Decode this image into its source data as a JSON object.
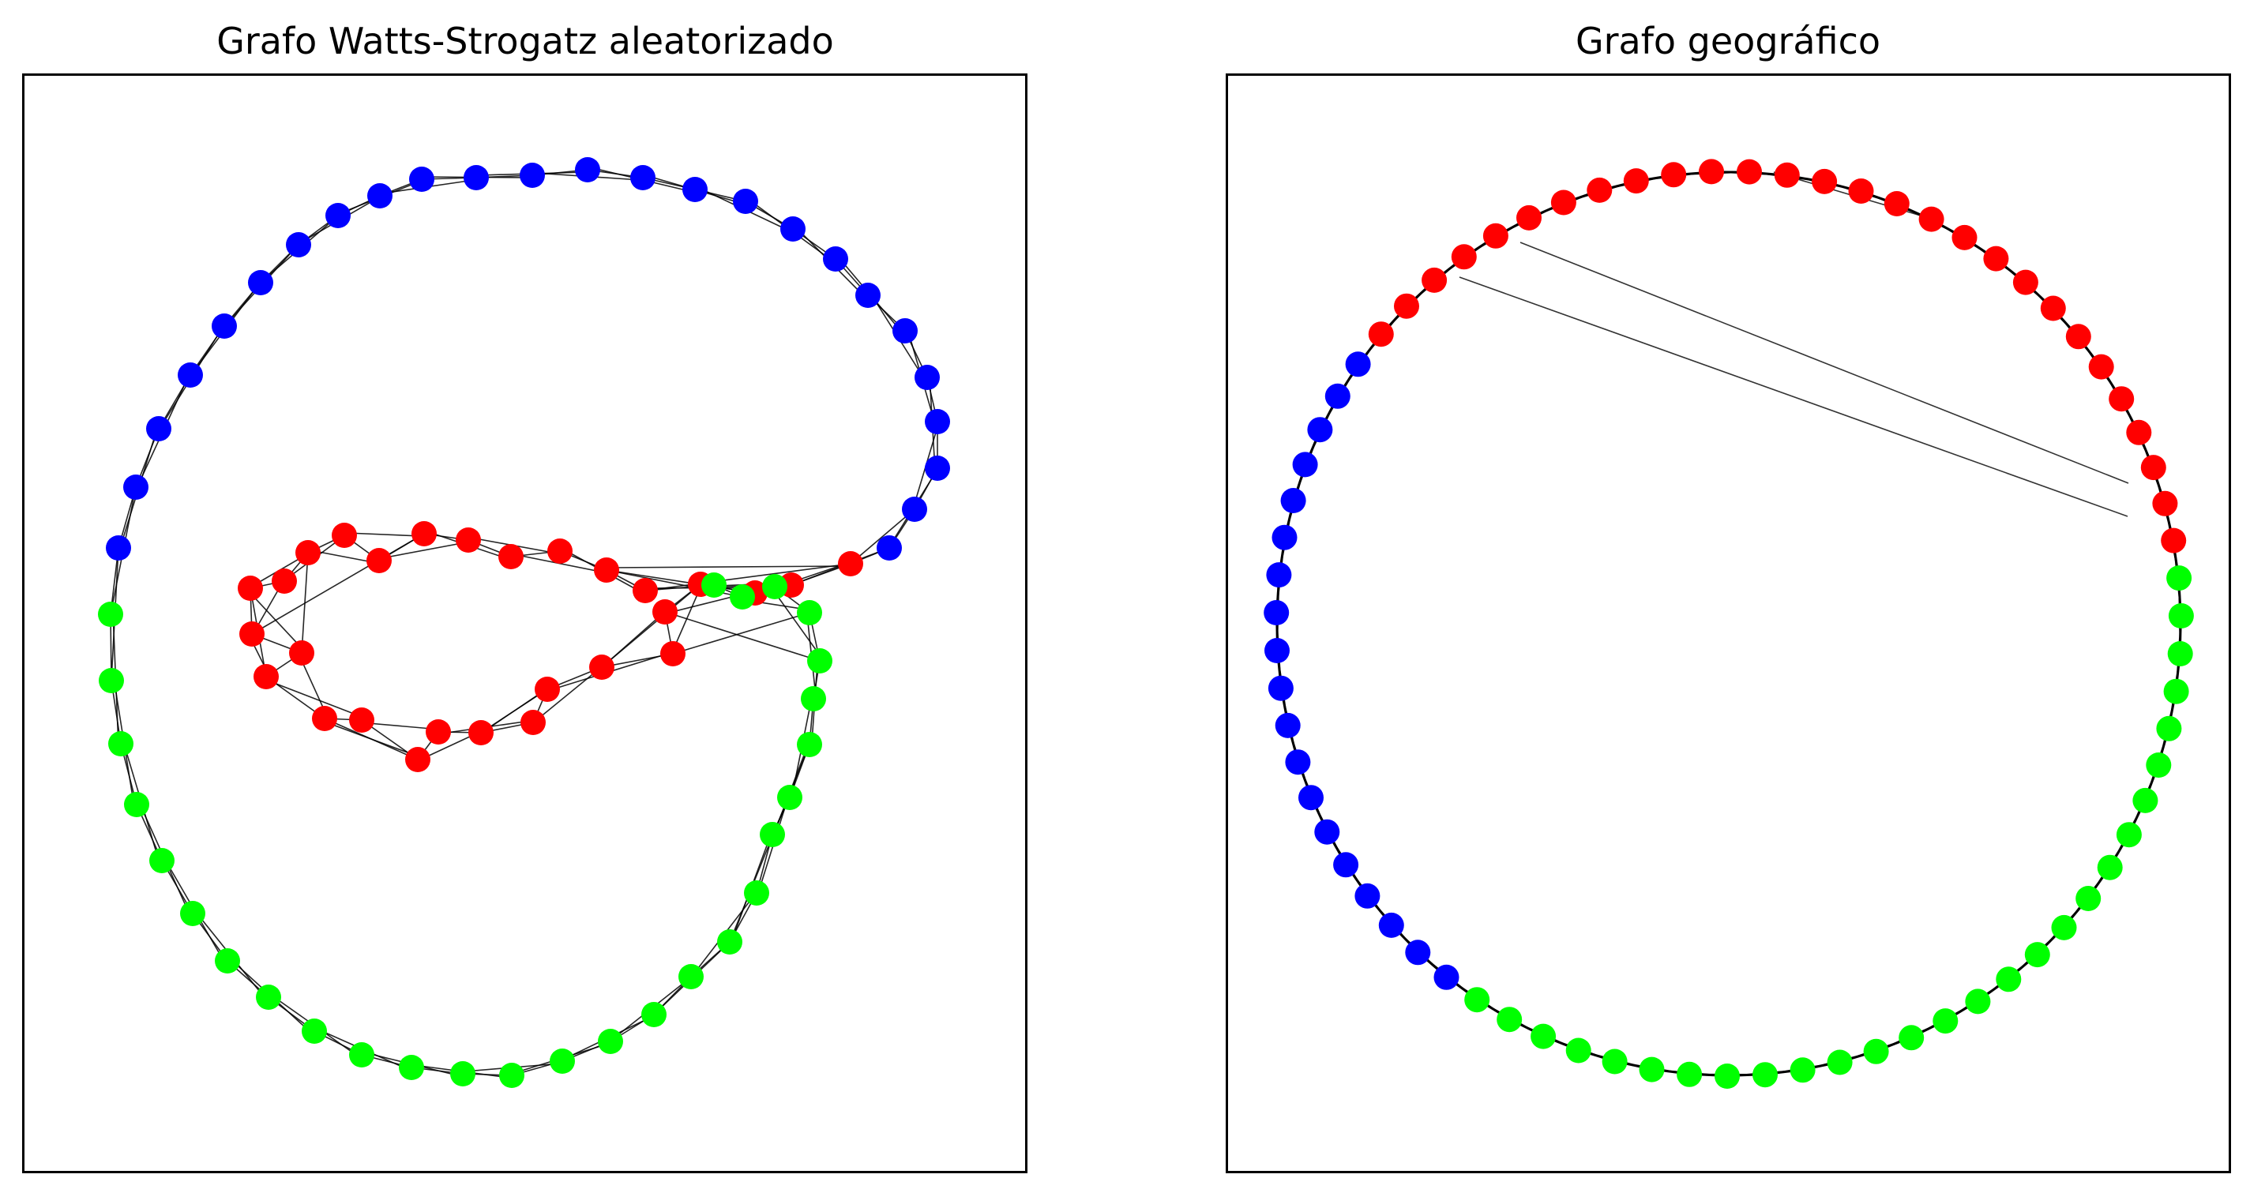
{
  "figure": {
    "left_panel": {
      "title": "Grafo Watts-Strogatz aleatorizado",
      "colors": {
        "red": "#ff0000",
        "green": "#00ff00",
        "blue": "#0000ff",
        "edge": "#000000"
      }
    },
    "right_panel": {
      "title": "Grafo geográfico",
      "node_count": 75,
      "node_colors": [
        "red",
        "green",
        "blue"
      ],
      "colors": {
        "red": "#ff0000",
        "green": "#00ff00",
        "blue": "#0000ff",
        "edge": "#000000"
      }
    }
  }
}
